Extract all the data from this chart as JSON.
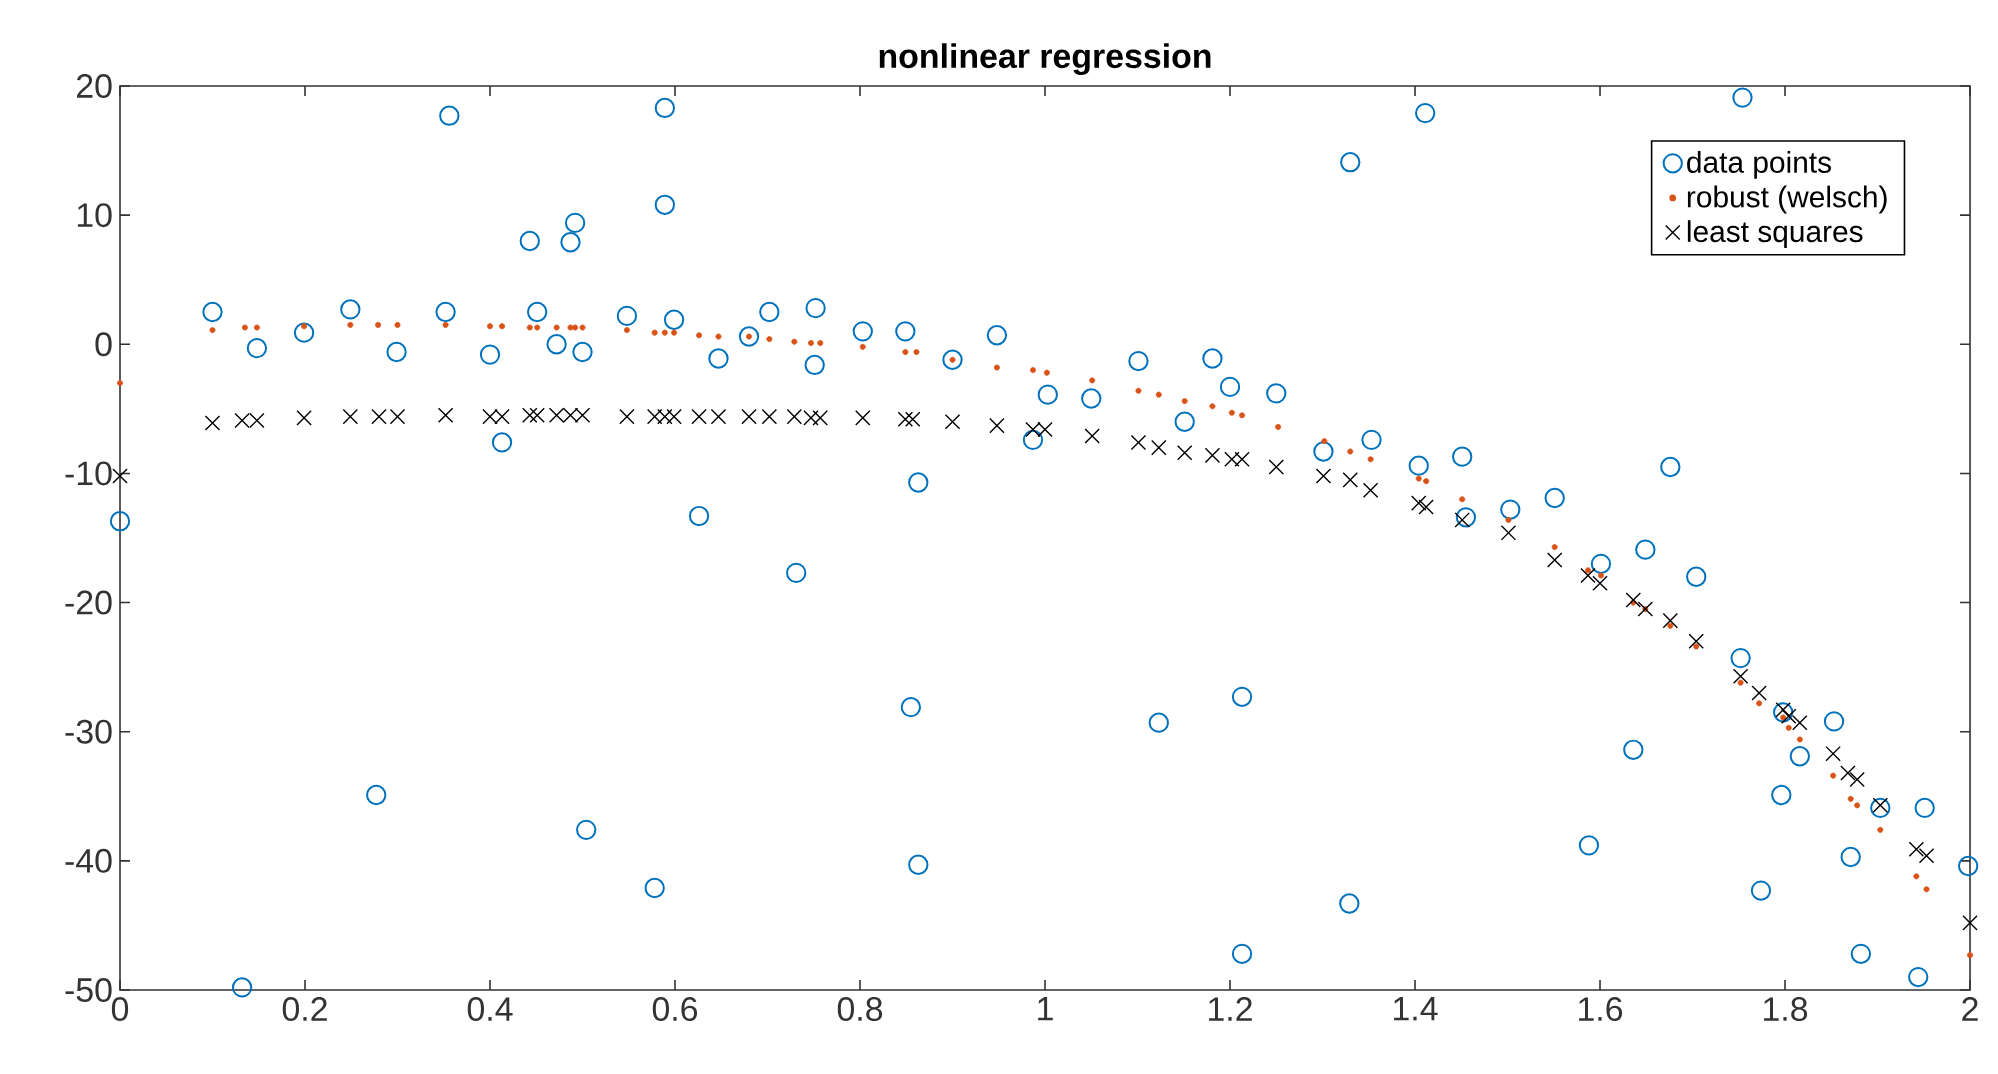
{
  "chart_data": {
    "type": "scatter",
    "title": "nonlinear regression",
    "xlim": [
      0,
      2
    ],
    "ylim": [
      -50,
      20
    ],
    "xticks": [
      0,
      0.2,
      0.4,
      0.6,
      0.8,
      1,
      1.2,
      1.4,
      1.6,
      1.8,
      2
    ],
    "yticks": [
      -50,
      -40,
      -30,
      -20,
      -10,
      0,
      10,
      20
    ],
    "legend": "top right",
    "series": [
      {
        "name": "data points",
        "color": "#0072bd",
        "marker": "circle",
        "x": [
          0,
          0.1,
          0.148,
          0.199,
          0.249,
          0.299,
          0.356,
          0.352,
          0.4,
          0.413,
          0.443,
          0.451,
          0.472,
          0.487,
          0.492,
          0.5,
          0.548,
          0.589,
          0.589,
          0.599,
          0.626,
          0.647,
          0.132,
          0.277,
          0.504,
          0.578,
          0.68,
          0.702,
          0.752,
          0.751,
          0.803,
          0.849,
          0.9,
          0.948,
          1.003,
          0.987,
          0.863,
          1.05,
          1.101,
          1.151,
          1.181,
          1.2,
          1.25,
          1.301,
          1.33,
          0.731,
          0.855,
          0.863,
          1.123,
          1.213,
          1.213,
          1.329,
          1.411,
          1.754,
          1.353,
          1.404,
          1.451,
          1.503,
          1.551,
          1.676,
          1.455,
          1.601,
          1.649,
          1.704,
          1.752,
          1.636,
          1.588,
          1.798,
          1.853,
          1.816,
          1.796,
          1.903,
          1.951,
          1.774,
          1.871,
          1.998,
          1.882,
          1.944
        ],
        "values": [
          -13.7,
          2.5,
          -0.3,
          0.9,
          2.7,
          -0.6,
          17.7,
          2.5,
          -0.8,
          -7.6,
          8,
          2.5,
          0,
          7.9,
          9.4,
          -0.6,
          2.2,
          18.3,
          10.8,
          1.9,
          -13.3,
          -1.1,
          -49.8,
          -34.9,
          -37.6,
          -42.1,
          0.6,
          2.5,
          2.8,
          -1.6,
          1,
          1,
          -1.2,
          0.7,
          -3.9,
          -7.4,
          -10.7,
          -4.2,
          -1.3,
          -6,
          -1.1,
          -3.3,
          -3.8,
          -8.3,
          14.1,
          -17.7,
          -28.1,
          -40.3,
          -29.3,
          -27.3,
          -47.2,
          -43.3,
          17.9,
          19.1,
          -7.4,
          -9.4,
          -8.7,
          -12.8,
          -11.9,
          -9.5,
          -13.4,
          -17,
          -15.9,
          -18,
          -24.3,
          -31.4,
          -38.8,
          -28.5,
          -29.2,
          -31.9,
          -34.9,
          -35.9,
          -35.9,
          -42.3,
          -39.7,
          -40.4,
          -47.2,
          -49
        ]
      },
      {
        "name": "robust (welsch)",
        "color": "#d95319",
        "marker": "circle",
        "x": [
          0,
          0.1,
          0.135,
          0.148,
          0.199,
          0.249,
          0.279,
          0.3,
          0.352,
          0.4,
          0.413,
          0.443,
          0.451,
          0.472,
          0.487,
          0.492,
          0.5,
          0.548,
          0.578,
          0.589,
          0.599,
          0.626,
          0.647,
          0.68,
          0.702,
          0.729,
          0.747,
          0.757,
          0.803,
          0.849,
          0.861,
          0.9,
          0.948,
          0.987,
          1.002,
          1.051,
          1.101,
          1.123,
          1.151,
          1.181,
          1.202,
          1.213,
          1.252,
          1.302,
          1.33,
          1.352,
          1.404,
          1.412,
          1.451,
          1.501,
          1.551,
          1.587,
          1.601,
          1.636,
          1.649,
          1.676,
          1.704,
          1.752,
          1.772,
          1.798,
          1.804,
          1.816,
          1.852,
          1.871,
          1.878,
          1.903,
          1.942,
          1.953,
          2
        ],
        "values": [
          -3,
          1.1,
          1.3,
          1.3,
          1.4,
          1.5,
          1.5,
          1.5,
          1.5,
          1.4,
          1.4,
          1.3,
          1.3,
          1.3,
          1.3,
          1.3,
          1.3,
          1.1,
          0.9,
          0.9,
          0.9,
          0.7,
          0.6,
          0.6,
          0.4,
          0.2,
          0.1,
          0.1,
          -0.2,
          -0.6,
          -0.6,
          -1.2,
          -1.8,
          -2,
          -2.2,
          -2.8,
          -3.6,
          -3.9,
          -4.4,
          -4.8,
          -5.3,
          -5.5,
          -6.4,
          -7.5,
          -8.3,
          -8.9,
          -10.4,
          -10.6,
          -12,
          -13.6,
          -15.7,
          -17.5,
          -17.9,
          -20,
          -20.5,
          -21.8,
          -23.4,
          -26.2,
          -27.8,
          -28.9,
          -29.7,
          -30.6,
          -33.4,
          -35.2,
          -35.7,
          -37.6,
          -41.2,
          -42.2,
          -47.3
        ]
      },
      {
        "name": "least squares",
        "color": "#000000",
        "marker": "cross",
        "x": [
          0,
          0.1,
          0.132,
          0.148,
          0.199,
          0.249,
          0.28,
          0.3,
          0.352,
          0.4,
          0.413,
          0.443,
          0.451,
          0.472,
          0.487,
          0.5,
          0.548,
          0.578,
          0.589,
          0.599,
          0.626,
          0.647,
          0.68,
          0.702,
          0.729,
          0.747,
          0.757,
          0.803,
          0.849,
          0.857,
          0.9,
          0.948,
          0.987,
          1,
          1.051,
          1.101,
          1.123,
          1.151,
          1.181,
          1.202,
          1.213,
          1.25,
          1.301,
          1.33,
          1.352,
          1.404,
          1.412,
          1.451,
          1.501,
          1.551,
          1.587,
          1.6,
          1.636,
          1.649,
          1.676,
          1.704,
          1.752,
          1.772,
          1.798,
          1.804,
          1.816,
          1.852,
          1.868,
          1.878,
          1.903,
          1.942,
          1.953,
          2
        ],
        "values": [
          -10.2,
          -6.1,
          -5.9,
          -5.9,
          -5.7,
          -5.6,
          -5.6,
          -5.6,
          -5.5,
          -5.6,
          -5.6,
          -5.5,
          -5.5,
          -5.5,
          -5.5,
          -5.5,
          -5.6,
          -5.6,
          -5.6,
          -5.6,
          -5.6,
          -5.6,
          -5.6,
          -5.6,
          -5.6,
          -5.7,
          -5.7,
          -5.7,
          -5.8,
          -5.8,
          -6,
          -6.3,
          -6.6,
          -6.6,
          -7.1,
          -7.6,
          -8,
          -8.4,
          -8.6,
          -8.9,
          -8.9,
          -9.5,
          -10.2,
          -10.5,
          -11.3,
          -12.3,
          -12.6,
          -13.6,
          -14.6,
          -16.7,
          -17.9,
          -18.5,
          -19.8,
          -20.5,
          -21.4,
          -23,
          -25.7,
          -27,
          -28.3,
          -28.8,
          -29.3,
          -31.7,
          -33.2,
          -33.7,
          -35.7,
          -39.1,
          -39.6,
          -44.8
        ]
      }
    ]
  }
}
